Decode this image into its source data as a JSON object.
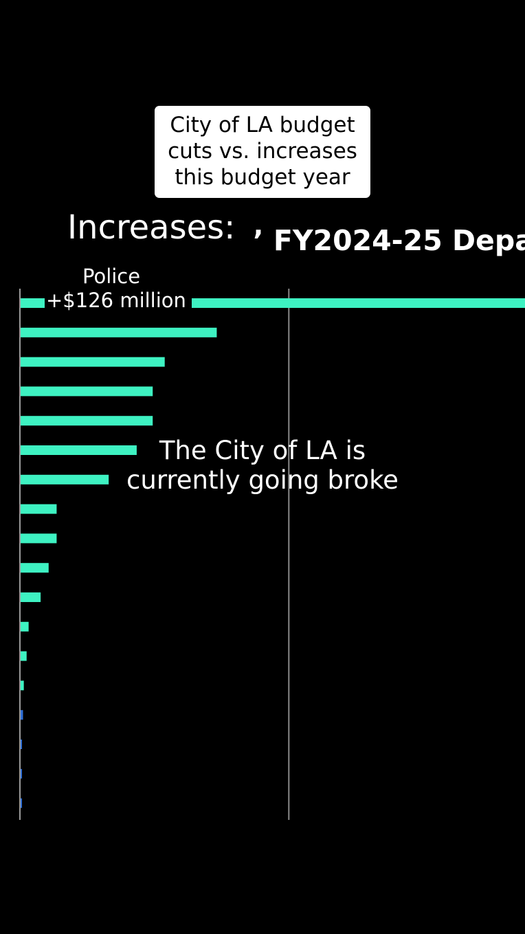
{
  "caption": {
    "lines": [
      "City of LA budget",
      "cuts vs. increases",
      "this budget year"
    ]
  },
  "section_label": "Increases:",
  "source_title": "’ FY2024-25 Depa",
  "overlay": {
    "lines": [
      "The City of LA is",
      "currently going broke"
    ]
  },
  "colors": {
    "background": "#000000",
    "bar": "#3ef2c2",
    "small_bar": "#2f6fd6",
    "gridline": "#8a8a8a",
    "caption_bg": "#ffffff"
  },
  "chart_data": {
    "type": "bar",
    "orientation": "horizontal",
    "title": "",
    "xlabel": "",
    "ylabel": "",
    "callout": {
      "label": "Police",
      "value_text": "+$126 million"
    },
    "values": [
      126,
      49,
      36,
      33,
      33,
      29,
      22,
      9,
      9,
      7,
      5,
      2,
      1.5,
      0.8,
      0.6,
      0.3,
      0.3,
      0.2
    ],
    "xlim": [
      0,
      126
    ],
    "gridline_at": 67,
    "grid": false,
    "legend": "none"
  }
}
